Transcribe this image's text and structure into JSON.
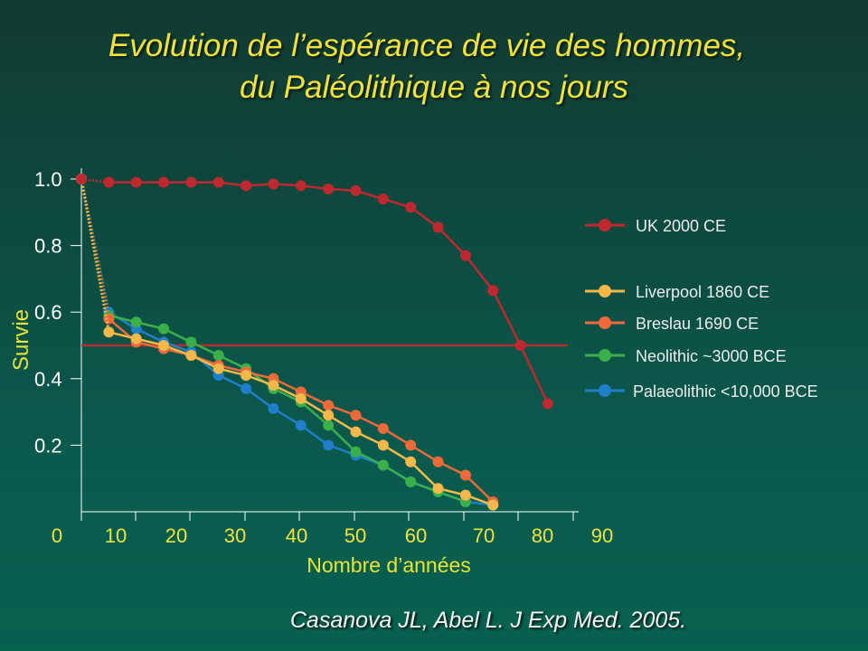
{
  "title": {
    "line1": "Evolution de l’espérance de vie des hommes,",
    "line2": "du Paléolithique  à nos jours"
  },
  "citation": "Casanova JL, Abel L.  J Exp Med. 2005.",
  "chart_data": {
    "type": "line",
    "xlabel": "Nombre d’années",
    "ylabel": "Survie",
    "xlim": [
      0,
      90
    ],
    "ylim": [
      0,
      1.0
    ],
    "xticks": [
      "0",
      "10",
      "20",
      "30",
      "40",
      "50",
      "60",
      "70",
      "80",
      "90"
    ],
    "yticks": [
      "1.0",
      "0.8",
      "0.6",
      "0.4",
      "0.2"
    ],
    "reference_line": 0.5,
    "legend_position": "right",
    "colors": {
      "axis": "#ffffff",
      "tick_labels_x": "#f0e23a",
      "axis_titles": "#e9e533",
      "reference_line": "#b0302e"
    },
    "series": [
      {
        "name": "UK 2000 CE",
        "color": "#c0282f",
        "x": [
          0,
          5,
          10,
          15,
          20,
          25,
          30,
          35,
          40,
          45,
          50,
          55,
          60,
          65,
          70,
          75,
          80,
          85
        ],
        "y": [
          1.0,
          0.99,
          0.99,
          0.99,
          0.99,
          0.99,
          0.98,
          0.985,
          0.98,
          0.97,
          0.965,
          0.94,
          0.915,
          0.855,
          0.77,
          0.665,
          0.5,
          0.325
        ]
      },
      {
        "name": "Liverpool 1860 CE",
        "color": "#f2b84a",
        "x": [
          0,
          5,
          10,
          15,
          20,
          25,
          30,
          35,
          40,
          45,
          50,
          55,
          60,
          65,
          70,
          75
        ],
        "y": [
          1.0,
          0.54,
          0.52,
          0.5,
          0.47,
          0.43,
          0.41,
          0.38,
          0.34,
          0.29,
          0.24,
          0.2,
          0.15,
          0.07,
          0.05,
          0.02
        ]
      },
      {
        "name": "Breslau 1690 CE",
        "color": "#ee6a3a",
        "x": [
          0,
          5,
          10,
          15,
          20,
          25,
          30,
          35,
          40,
          45,
          50,
          55,
          60,
          65,
          70,
          75
        ],
        "y": [
          1.0,
          0.58,
          0.51,
          0.49,
          0.47,
          0.44,
          0.42,
          0.4,
          0.36,
          0.32,
          0.29,
          0.25,
          0.2,
          0.15,
          0.11,
          0.03
        ]
      },
      {
        "name": "Neolithic ~3000 BCE",
        "color": "#3bb04a",
        "x": [
          0,
          5,
          10,
          15,
          20,
          25,
          30,
          35,
          40,
          45,
          50,
          55,
          60,
          65,
          70
        ],
        "y": [
          1.0,
          0.59,
          0.57,
          0.55,
          0.51,
          0.47,
          0.43,
          0.37,
          0.33,
          0.26,
          0.18,
          0.14,
          0.09,
          0.06,
          0.03
        ]
      },
      {
        "name": "Palaeolithic <10,000 BCE",
        "color": "#1f7fc8",
        "x": [
          0,
          5,
          10,
          15,
          20,
          25,
          30,
          35,
          40,
          45,
          50,
          55,
          60,
          65,
          70,
          75
        ],
        "y": [
          1.0,
          0.6,
          0.55,
          0.51,
          0.48,
          0.41,
          0.37,
          0.31,
          0.26,
          0.2,
          0.17,
          0.14,
          0.09,
          0.06,
          0.03,
          0.02
        ]
      }
    ]
  }
}
